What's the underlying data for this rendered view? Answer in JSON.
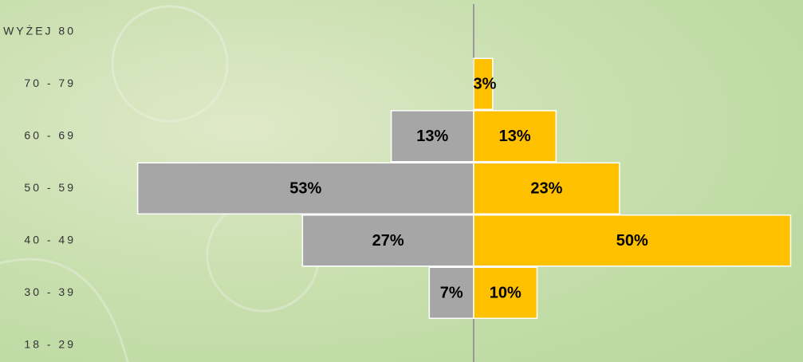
{
  "chart_data": {
    "type": "pyramid",
    "categories": [
      "WYŻEJ 80",
      "70 - 79",
      "60 - 69",
      "50 - 59",
      "40 - 49",
      "30 - 39",
      "18 - 29"
    ],
    "series": [
      {
        "side": "left",
        "color": "#a6a6a6",
        "values": [
          null,
          null,
          13,
          53,
          27,
          7,
          null
        ],
        "value_labels": [
          null,
          null,
          "13%",
          "53%",
          "27%",
          "7%",
          null
        ]
      },
      {
        "side": "right",
        "color": "#ffc000",
        "values": [
          null,
          3,
          13,
          23,
          50,
          10,
          null
        ],
        "value_labels": [
          null,
          "3%",
          "13%",
          "23%",
          "50%",
          "10%",
          null
        ]
      }
    ]
  }
}
